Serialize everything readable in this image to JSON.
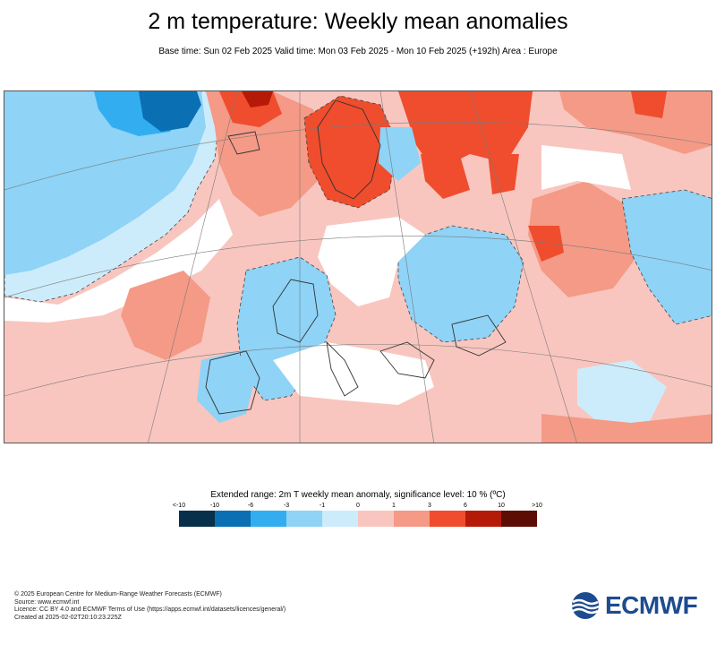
{
  "header": {
    "title": "2 m temperature: Weekly mean anomalies",
    "subtitle": "Base time: Sun 02 Feb 2025 Valid time: Mon 03 Feb 2025 - Mon 10 Feb 2025 (+192h) Area : Europe"
  },
  "map": {
    "region": "Europe",
    "variable": "2m temperature weekly mean anomaly"
  },
  "legend": {
    "title": "Extended range: 2m T weekly mean anomaly, significance level: 10 % (ºC)",
    "ticks": [
      "<-10",
      "-10",
      "-6",
      "-3",
      "-1",
      "0",
      "1",
      "3",
      "6",
      "10",
      ">10"
    ],
    "colors": [
      "#08304a",
      "#0a6fb3",
      "#32aef0",
      "#8fd3f6",
      "#cdecfb",
      "#f8c6bf",
      "#f49a87",
      "#ef4d2d",
      "#b51a09",
      "#5c0d04"
    ]
  },
  "footer": {
    "line1": "© 2025 European Centre for Medium-Range Weather Forecasts (ECMWF)",
    "line2": "Source: www.ecmwf.int",
    "line3": "Licence: CC BY 4.0 and ECMWF Terms of Use (https://apps.ecmwf.int/datasets/licences/general/)",
    "line4": "Created at 2025-02-02T20:10:23.225Z"
  },
  "logo": {
    "text": "ECMWF"
  }
}
